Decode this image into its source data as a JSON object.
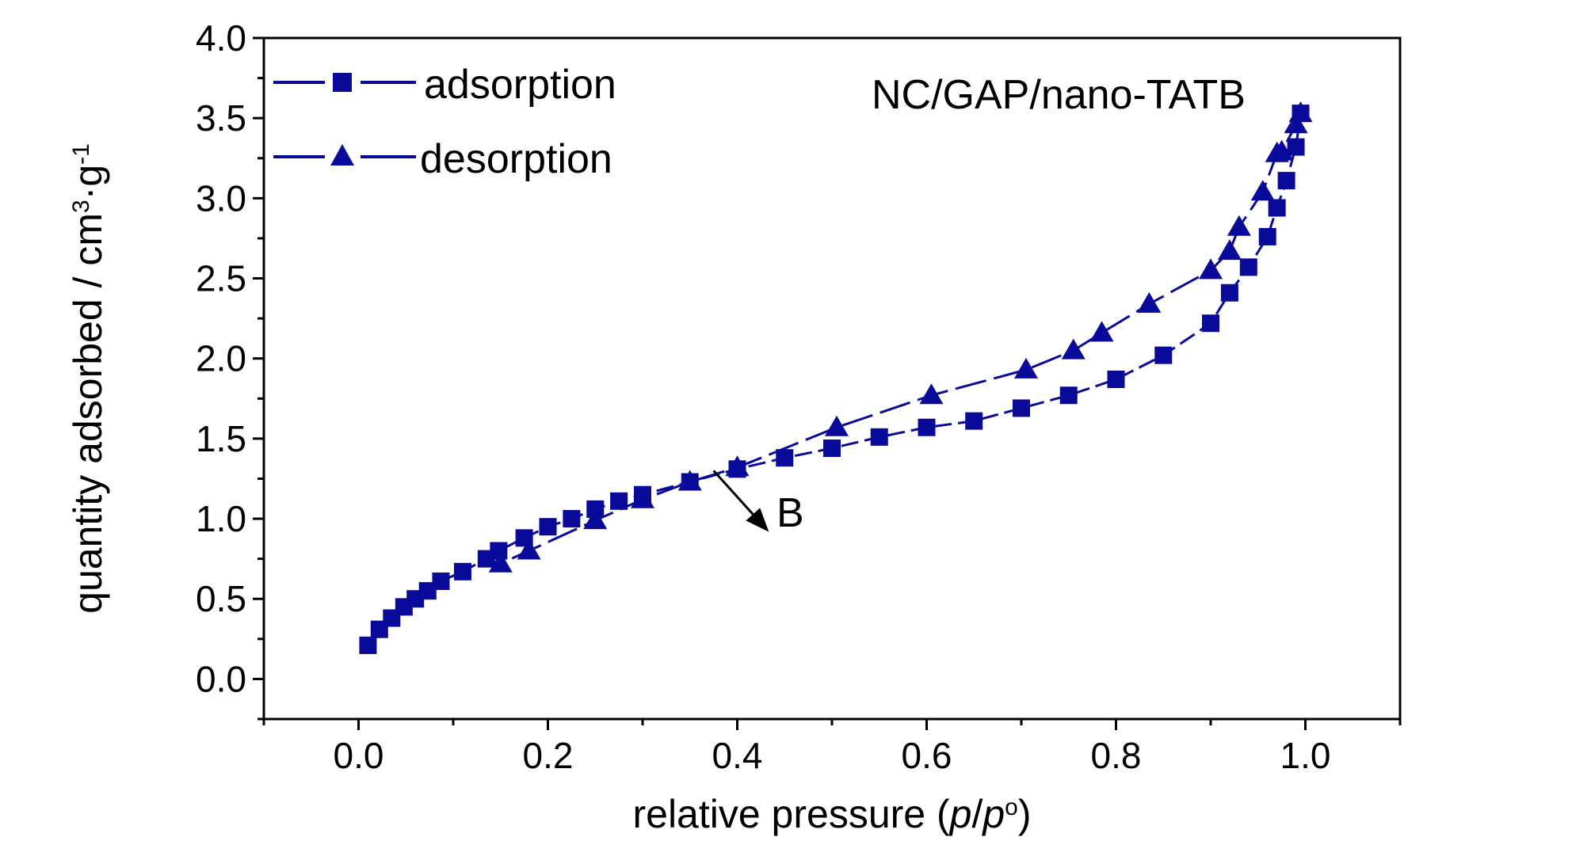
{
  "chart_data": {
    "type": "line",
    "title": "NC/GAP/nano-TATB",
    "xlabel": {
      "prefix": "relative pressure (",
      "p1": "p",
      "slash": "/",
      "p2": "p",
      "sup": "o",
      "suffix": ")"
    },
    "ylabel": {
      "main": "quantity adsorbed / cm",
      "sup1": "3",
      "mid": "·g",
      "sup2": "-1"
    },
    "xlim": [
      -0.1,
      1.1
    ],
    "ylim": [
      -0.25,
      4.0
    ],
    "xticks": [
      "0.0",
      "0.2",
      "0.4",
      "0.6",
      "0.8",
      "1.0"
    ],
    "yticks": [
      "0.0",
      "0.5",
      "1.0",
      "1.5",
      "2.0",
      "2.5",
      "3.0",
      "3.5",
      "4.0"
    ],
    "grid": false,
    "legend_position": "top-left",
    "color": "#0a0a9a",
    "series": [
      {
        "name": "adsorption",
        "marker": "square",
        "x": [
          0.01,
          0.022,
          0.035,
          0.048,
          0.06,
          0.073,
          0.087,
          0.11,
          0.135,
          0.148,
          0.175,
          0.2,
          0.225,
          0.25,
          0.275,
          0.3,
          0.35,
          0.4,
          0.45,
          0.5,
          0.55,
          0.6,
          0.65,
          0.7,
          0.75,
          0.8,
          0.85,
          0.9,
          0.92,
          0.94,
          0.96,
          0.97,
          0.98,
          0.99,
          0.995
        ],
        "y": [
          0.21,
          0.31,
          0.38,
          0.45,
          0.5,
          0.55,
          0.61,
          0.67,
          0.75,
          0.8,
          0.88,
          0.95,
          1.0,
          1.06,
          1.11,
          1.15,
          1.23,
          1.31,
          1.38,
          1.44,
          1.51,
          1.57,
          1.61,
          1.69,
          1.77,
          1.87,
          2.02,
          2.22,
          2.41,
          2.57,
          2.76,
          2.94,
          3.11,
          3.32,
          3.53
        ]
      },
      {
        "name": "desorption",
        "marker": "triangle",
        "x": [
          0.995,
          0.99,
          0.975,
          0.97,
          0.955,
          0.93,
          0.92,
          0.9,
          0.835,
          0.785,
          0.755,
          0.705,
          0.605,
          0.505,
          0.4,
          0.35,
          0.3,
          0.25,
          0.18,
          0.15
        ],
        "y": [
          3.53,
          3.46,
          3.29,
          3.28,
          3.04,
          2.82,
          2.67,
          2.55,
          2.34,
          2.16,
          2.05,
          1.93,
          1.77,
          1.57,
          1.32,
          1.23,
          1.12,
          0.99,
          0.8,
          0.72
        ]
      }
    ],
    "annotation": {
      "text": "B",
      "arrow_from": [
        0.375,
        1.3
      ],
      "arrow_to": [
        0.43,
        0.94
      ]
    }
  }
}
